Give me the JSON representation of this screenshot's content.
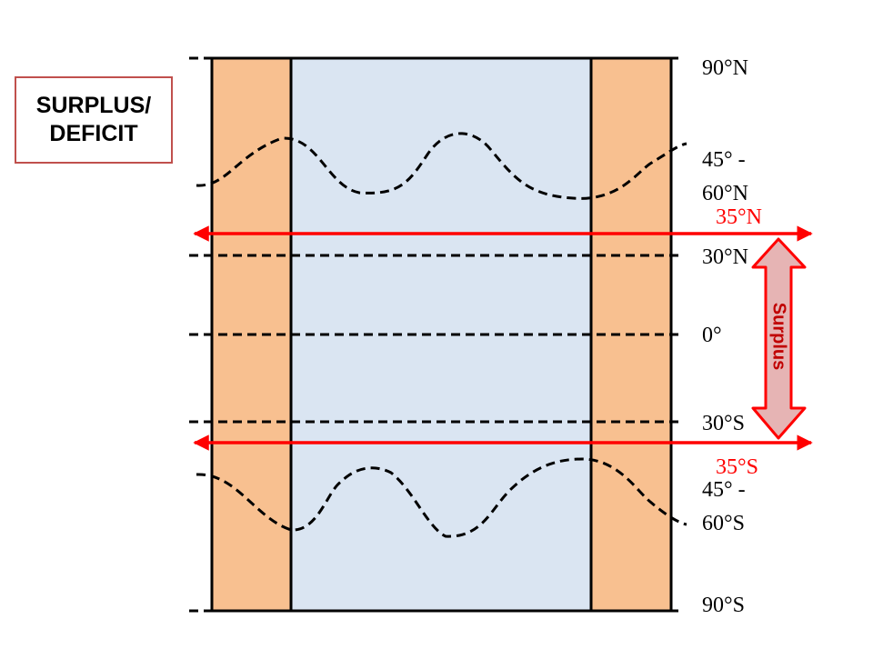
{
  "title_box": {
    "line1": "SURPLUS/",
    "line2": "DEFICIT"
  },
  "latitude_labels": {
    "n90": "90°N",
    "n45_line1": "45° -",
    "n45_line2": "60°N",
    "n30": "30°N",
    "eq": "0°",
    "s30": "30°S",
    "s45_line1": "45° -",
    "s45_line2": "60°S",
    "s90": "90°S"
  },
  "boundaries": {
    "north": "35°N",
    "south": "35°S"
  },
  "surplus_arrow": {
    "label": "Surplus"
  },
  "colors": {
    "land": "#f8c090",
    "ocean": "#dae5f2",
    "boundary_arrow": "#ff0000",
    "surplus_fill": "#e6b4b4",
    "surplus_stroke": "#ff0000",
    "title_border": "#c0504d"
  }
}
